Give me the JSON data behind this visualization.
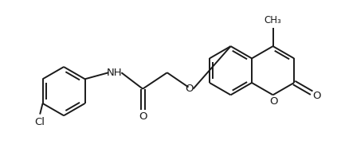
{
  "bg_color": "#ffffff",
  "line_color": "#1a1a1a",
  "line_width": 1.4,
  "font_size": 9.5,
  "figsize": [
    4.28,
    1.91
  ],
  "dpi": 100,
  "xlim": [
    -4.8,
    5.2
  ],
  "ylim": [
    -2.2,
    2.2
  ]
}
